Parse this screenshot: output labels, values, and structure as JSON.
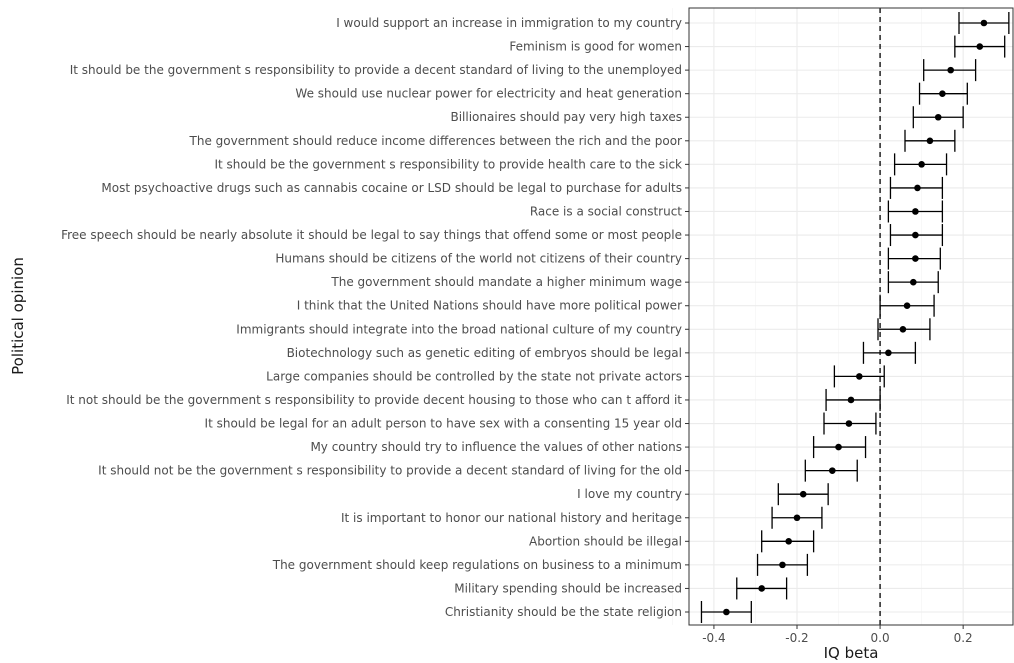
{
  "chart_data": {
    "type": "scatter",
    "subtype": "dot-and-whisker",
    "xlabel": "IQ beta",
    "ylabel": "Political opinion",
    "xlim": [
      -0.46,
      0.32
    ],
    "xticks": [
      -0.4,
      -0.2,
      0.0,
      0.2
    ],
    "xtick_labels": [
      "-0.4",
      "-0.2",
      "0.0",
      "0.2"
    ],
    "grid": true,
    "reference_line": {
      "x": 0,
      "style": "dashed"
    },
    "colors": {
      "point": "#000000",
      "grid": "#ebebeb",
      "panel_border": "#333333",
      "text": "#4d4d4d"
    },
    "categories": [
      "I would support an increase in immigration to my country",
      "Feminism is good for women",
      "It should be the government s responsibility to provide a decent standard of living to the unemployed",
      "We should use nuclear power for electricity and heat generation",
      "Billionaires should pay very high taxes",
      "The government should reduce income differences between the rich and the poor",
      "It should be the government s responsibility to provide health care to the sick",
      "Most psychoactive drugs such as cannabis cocaine or LSD should be legal to purchase for adults",
      "Race is a social construct",
      "Free speech should be nearly absolute it should be legal to say things that offend some or most people",
      "Humans should be citizens of the world not citizens of their country",
      "The government should mandate a higher minimum wage",
      "I think that the United Nations should have more political power",
      "Immigrants should integrate into the broad national culture of my country",
      "Biotechnology such as genetic editing of embryos should be legal",
      "Large companies should be controlled by the state not private actors",
      "It not should be the government s responsibility to provide decent housing to those who can t afford it",
      "It should be legal for an adult person to have sex with a consenting 15 year old",
      "My country should try to influence the values of other nations",
      "It should not be the government s responsibility to provide a decent standard of living for the old",
      "I love my country",
      "It is important to honor our national history and heritage",
      "Abortion should be illegal",
      "The government should keep regulations on business to a minimum",
      "Military spending should be increased",
      "Christianity should be the state religion"
    ],
    "estimates": [
      0.25,
      0.24,
      0.17,
      0.15,
      0.14,
      0.12,
      0.1,
      0.09,
      0.085,
      0.085,
      0.085,
      0.08,
      0.065,
      0.055,
      0.02,
      -0.05,
      -0.07,
      -0.075,
      -0.1,
      -0.115,
      -0.185,
      -0.2,
      -0.22,
      -0.235,
      -0.285,
      -0.37
    ],
    "lower": [
      0.19,
      0.18,
      0.105,
      0.095,
      0.08,
      0.06,
      0.035,
      0.025,
      0.02,
      0.025,
      0.02,
      0.02,
      0.0,
      -0.005,
      -0.04,
      -0.11,
      -0.13,
      -0.135,
      -0.16,
      -0.18,
      -0.245,
      -0.26,
      -0.285,
      -0.295,
      -0.345,
      -0.43
    ],
    "upper": [
      0.31,
      0.3,
      0.23,
      0.21,
      0.2,
      0.18,
      0.16,
      0.15,
      0.15,
      0.15,
      0.145,
      0.14,
      0.13,
      0.12,
      0.085,
      0.01,
      0.0,
      -0.01,
      -0.035,
      -0.055,
      -0.125,
      -0.14,
      -0.16,
      -0.175,
      -0.225,
      -0.31
    ]
  }
}
